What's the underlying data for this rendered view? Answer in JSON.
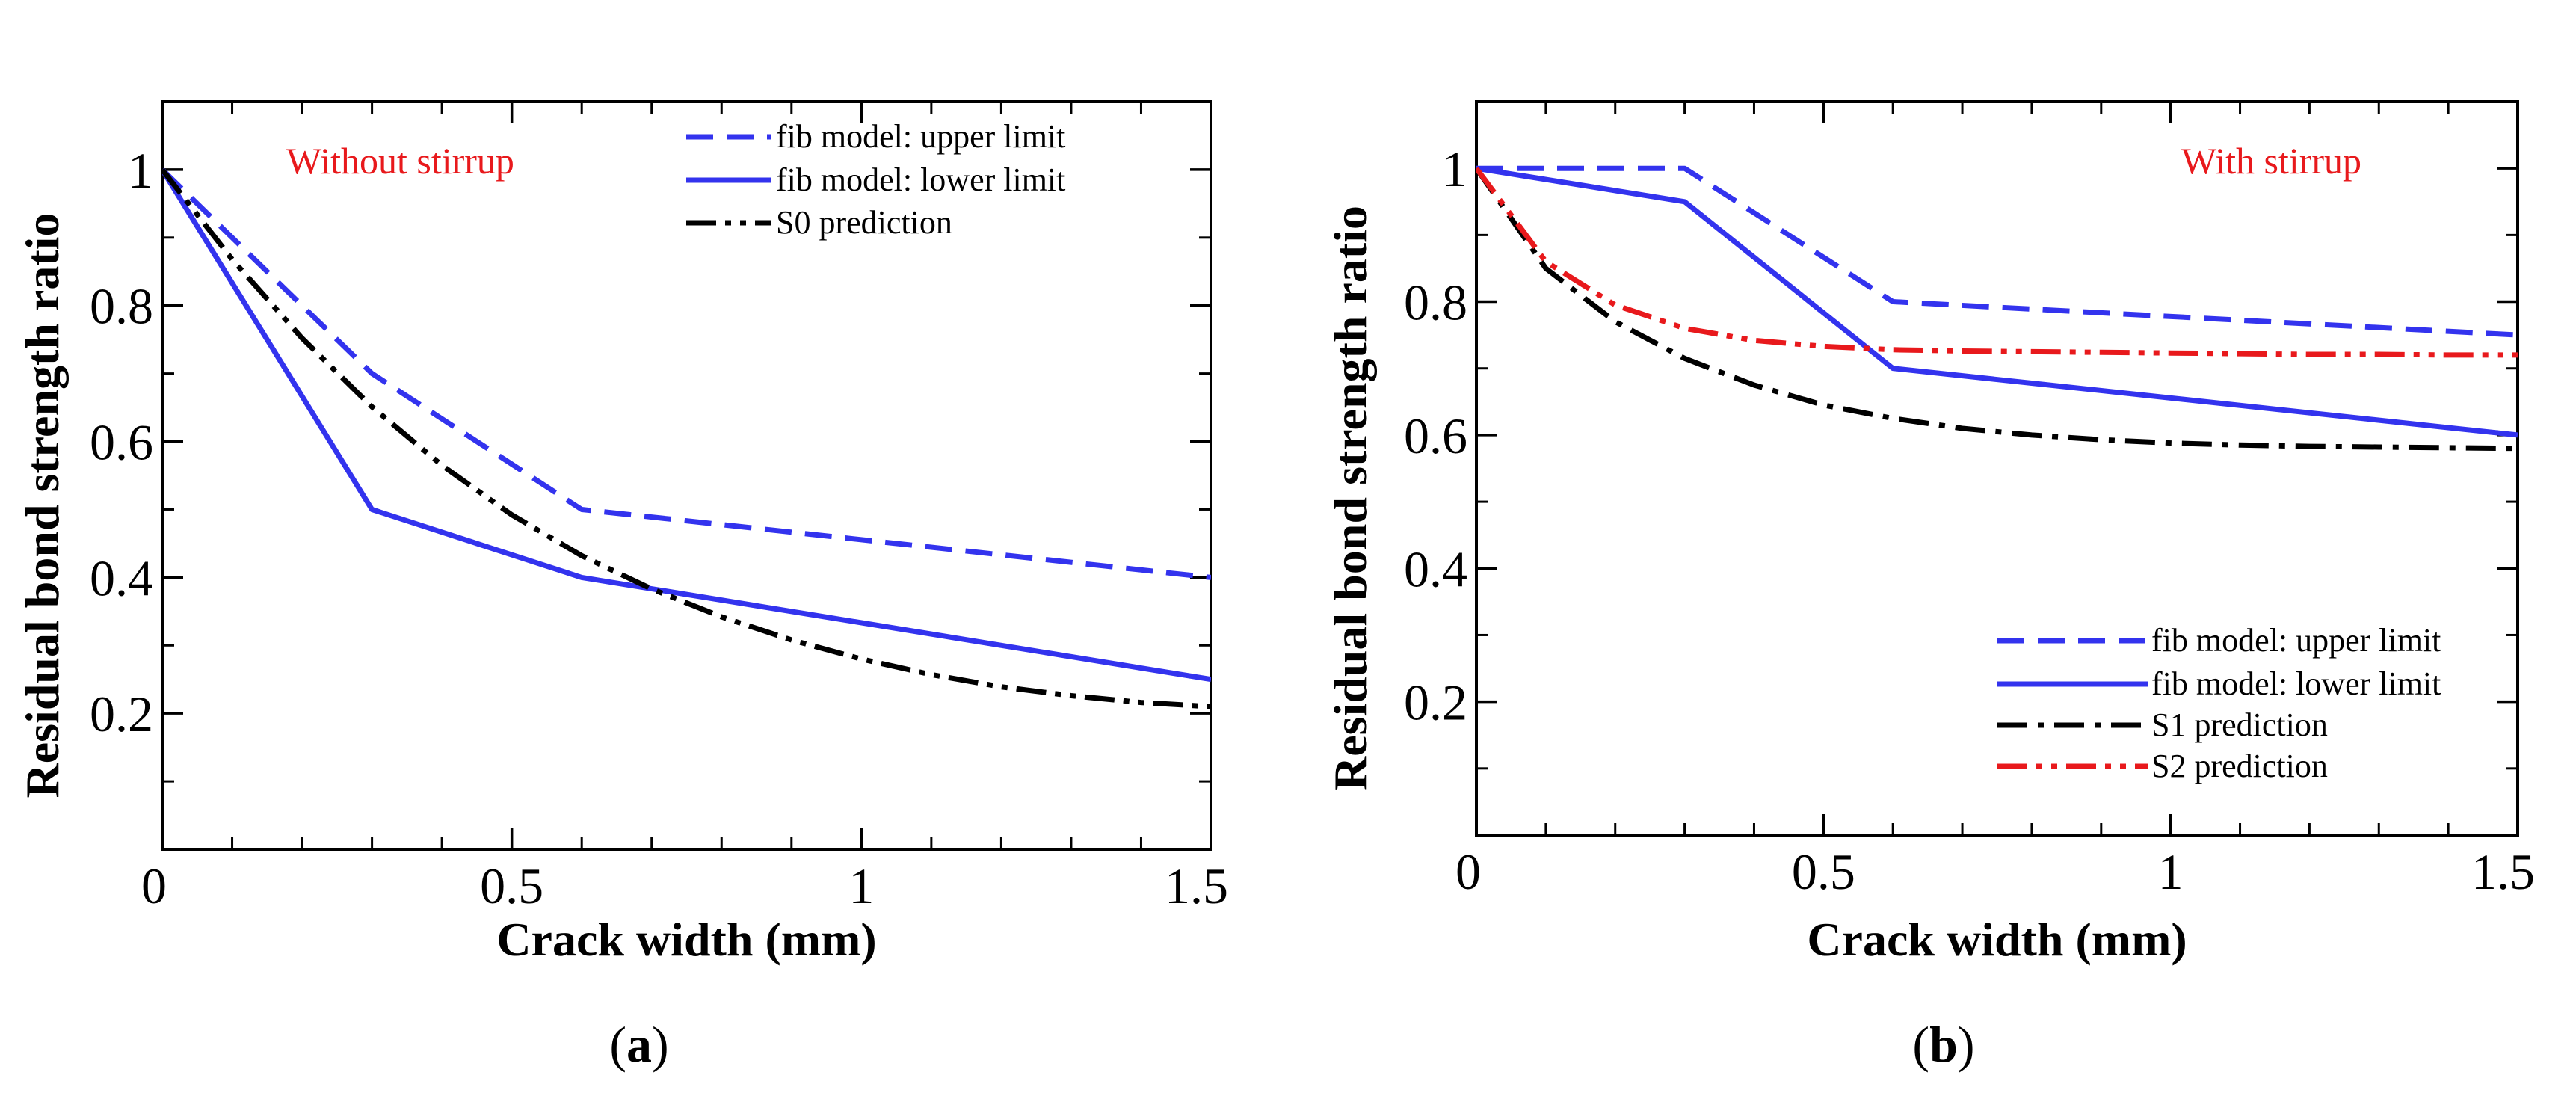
{
  "chart_data": [
    {
      "type": "line",
      "panel_label": "a",
      "annotation": {
        "text": "Without stirrup",
        "color": "#e8191c"
      },
      "xlabel": "Crack width (mm)",
      "ylabel": "Residual bond strength ratio",
      "xlim": [
        0,
        1.5
      ],
      "ylim": [
        0,
        1.1
      ],
      "x_ticks": [
        0,
        0.5,
        1,
        1.5
      ],
      "x_tick_labels": [
        "0",
        "0.5",
        "1",
        "1.5"
      ],
      "y_ticks": [
        0.2,
        0.4,
        0.6,
        0.8,
        1
      ],
      "y_tick_labels": [
        "0.2",
        "0.4",
        "0.6",
        "0.8",
        "1"
      ],
      "legend_position": "top-right",
      "series": [
        {
          "name": "fib model: upper limit",
          "style": "dashed",
          "color": "#3333ee",
          "x": [
            0,
            0.3,
            0.6,
            1.5
          ],
          "y": [
            1.0,
            0.7,
            0.5,
            0.4
          ]
        },
        {
          "name": "fib model: lower limit",
          "style": "solid",
          "color": "#3333ee",
          "x": [
            0,
            0.3,
            0.6,
            1.5
          ],
          "y": [
            1.0,
            0.5,
            0.4,
            0.25
          ]
        },
        {
          "name": "S0 prediction",
          "style": "dash-dot-dot",
          "color": "#000000",
          "x": [
            0,
            0.1,
            0.2,
            0.3,
            0.4,
            0.5,
            0.6,
            0.7,
            0.8,
            0.9,
            1.0,
            1.1,
            1.2,
            1.3,
            1.4,
            1.5
          ],
          "y": [
            1.0,
            0.868,
            0.752,
            0.651,
            0.565,
            0.492,
            0.432,
            0.383,
            0.342,
            0.308,
            0.28,
            0.257,
            0.239,
            0.226,
            0.216,
            0.21
          ]
        }
      ]
    },
    {
      "type": "line",
      "panel_label": "b",
      "annotation": {
        "text": "With stirrup",
        "color": "#e8191c"
      },
      "xlabel": "Crack width (mm)",
      "ylabel": "Residual bond strength ratio",
      "xlim": [
        0,
        1.5
      ],
      "ylim": [
        0,
        1.1
      ],
      "x_ticks": [
        0,
        0.5,
        1,
        1.5
      ],
      "x_tick_labels": [
        "0",
        "0.5",
        "1",
        "1.5"
      ],
      "y_ticks": [
        0.2,
        0.4,
        0.6,
        0.8,
        1
      ],
      "y_tick_labels": [
        "0.2",
        "0.4",
        "0.6",
        "0.8",
        "1"
      ],
      "legend_position": "bottom-right",
      "series": [
        {
          "name": "fib model: upper limit",
          "style": "dashed",
          "color": "#3333ee",
          "x": [
            0,
            0.3,
            0.6,
            1.5
          ],
          "y": [
            1.0,
            1.0,
            0.8,
            0.75
          ]
        },
        {
          "name": "fib model: lower limit",
          "style": "solid",
          "color": "#3333ee",
          "x": [
            0,
            0.3,
            0.6,
            1.5
          ],
          "y": [
            1.0,
            0.95,
            0.7,
            0.6
          ]
        },
        {
          "name": "S1 prediction",
          "style": "dash-dot",
          "color": "#000000",
          "x": [
            0,
            0.1,
            0.2,
            0.3,
            0.4,
            0.5,
            0.6,
            0.7,
            0.8,
            0.9,
            1.0,
            1.1,
            1.2,
            1.3,
            1.4,
            1.5
          ],
          "y": [
            1.0,
            0.85,
            0.77,
            0.715,
            0.675,
            0.645,
            0.625,
            0.61,
            0.6,
            0.593,
            0.588,
            0.585,
            0.583,
            0.582,
            0.581,
            0.58
          ]
        },
        {
          "name": "S2 prediction",
          "style": "dash-dot-dot",
          "color": "#e8191c",
          "x": [
            0,
            0.1,
            0.2,
            0.3,
            0.4,
            0.5,
            0.6,
            0.7,
            0.8,
            0.9,
            1.0,
            1.1,
            1.2,
            1.3,
            1.4,
            1.5
          ],
          "y": [
            1.0,
            0.86,
            0.795,
            0.76,
            0.742,
            0.733,
            0.728,
            0.726,
            0.725,
            0.724,
            0.723,
            0.722,
            0.721,
            0.721,
            0.72,
            0.72
          ]
        }
      ]
    }
  ]
}
